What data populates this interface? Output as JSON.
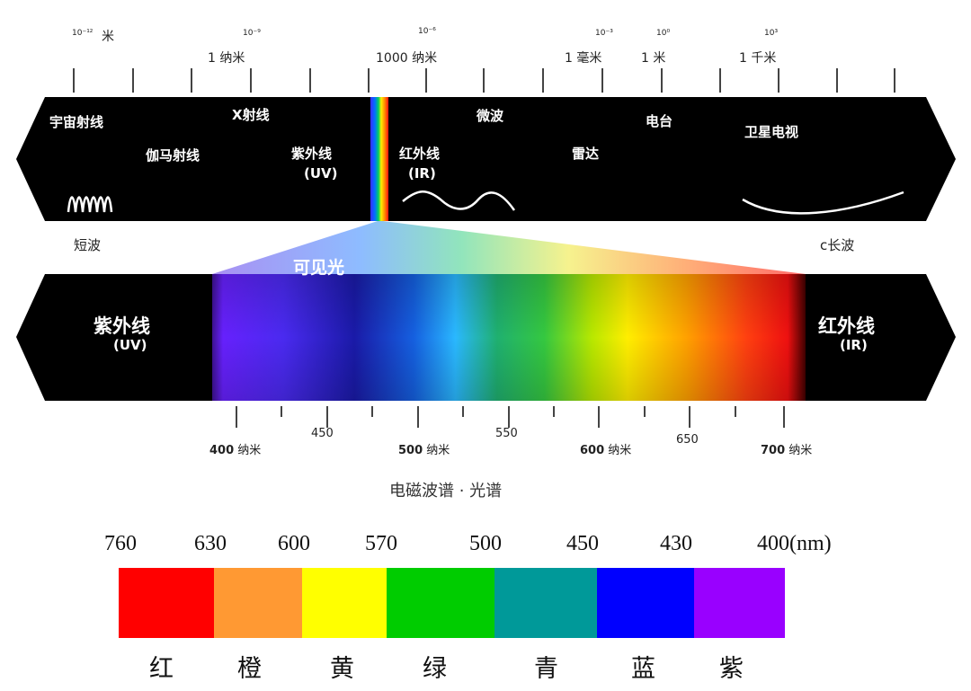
{
  "top_scale": {
    "exponents": [
      "10⁻¹²",
      "10⁻⁹",
      "10⁻⁶",
      "10⁻³",
      "10⁰",
      "10³"
    ],
    "labels": [
      "米",
      "1 纳米",
      "1000 纳米",
      "1 毫米",
      "1 米",
      "1 千米"
    ]
  },
  "em_bands": {
    "cosmic": "宇宙射线",
    "gamma": "伽马射线",
    "xray": "X射线",
    "uv": "紫外线",
    "uv_abbr": "(UV)",
    "ir": "红外线",
    "ir_abbr": "(IR)",
    "microwave": "微波",
    "radar": "雷达",
    "radio": "电台",
    "satellite_tv": "卫星电视"
  },
  "wave_labels": {
    "short": "短波",
    "long": "c长波"
  },
  "visible": {
    "label": "可见光",
    "left_label": "紫外线",
    "left_abbr": "(UV)",
    "right_label": "红外线",
    "right_abbr": "(IR)"
  },
  "wavelength_ticks": [
    {
      "value": "400",
      "unit": "纳米"
    },
    {
      "value": "450",
      "unit": ""
    },
    {
      "value": "500",
      "unit": "纳米"
    },
    {
      "value": "550",
      "unit": ""
    },
    {
      "value": "600",
      "unit": "纳米"
    },
    {
      "value": "650",
      "unit": ""
    },
    {
      "value": "700",
      "unit": "纳米"
    }
  ],
  "caption": "电磁波谱 · 光谱",
  "legend": {
    "boundaries": [
      "760",
      "630",
      "600",
      "570",
      "500",
      "450",
      "430",
      "400(nm)"
    ],
    "segments": [
      {
        "name": "红",
        "color": "#ff0000"
      },
      {
        "name": "橙",
        "color": "#ff9933"
      },
      {
        "name": "黄",
        "color": "#ffff00"
      },
      {
        "name": "绿",
        "color": "#00cc00"
      },
      {
        "name": "青",
        "color": "#009999"
      },
      {
        "name": "蓝",
        "color": "#0000ff"
      },
      {
        "name": "紫",
        "color": "#9900ff"
      }
    ]
  }
}
